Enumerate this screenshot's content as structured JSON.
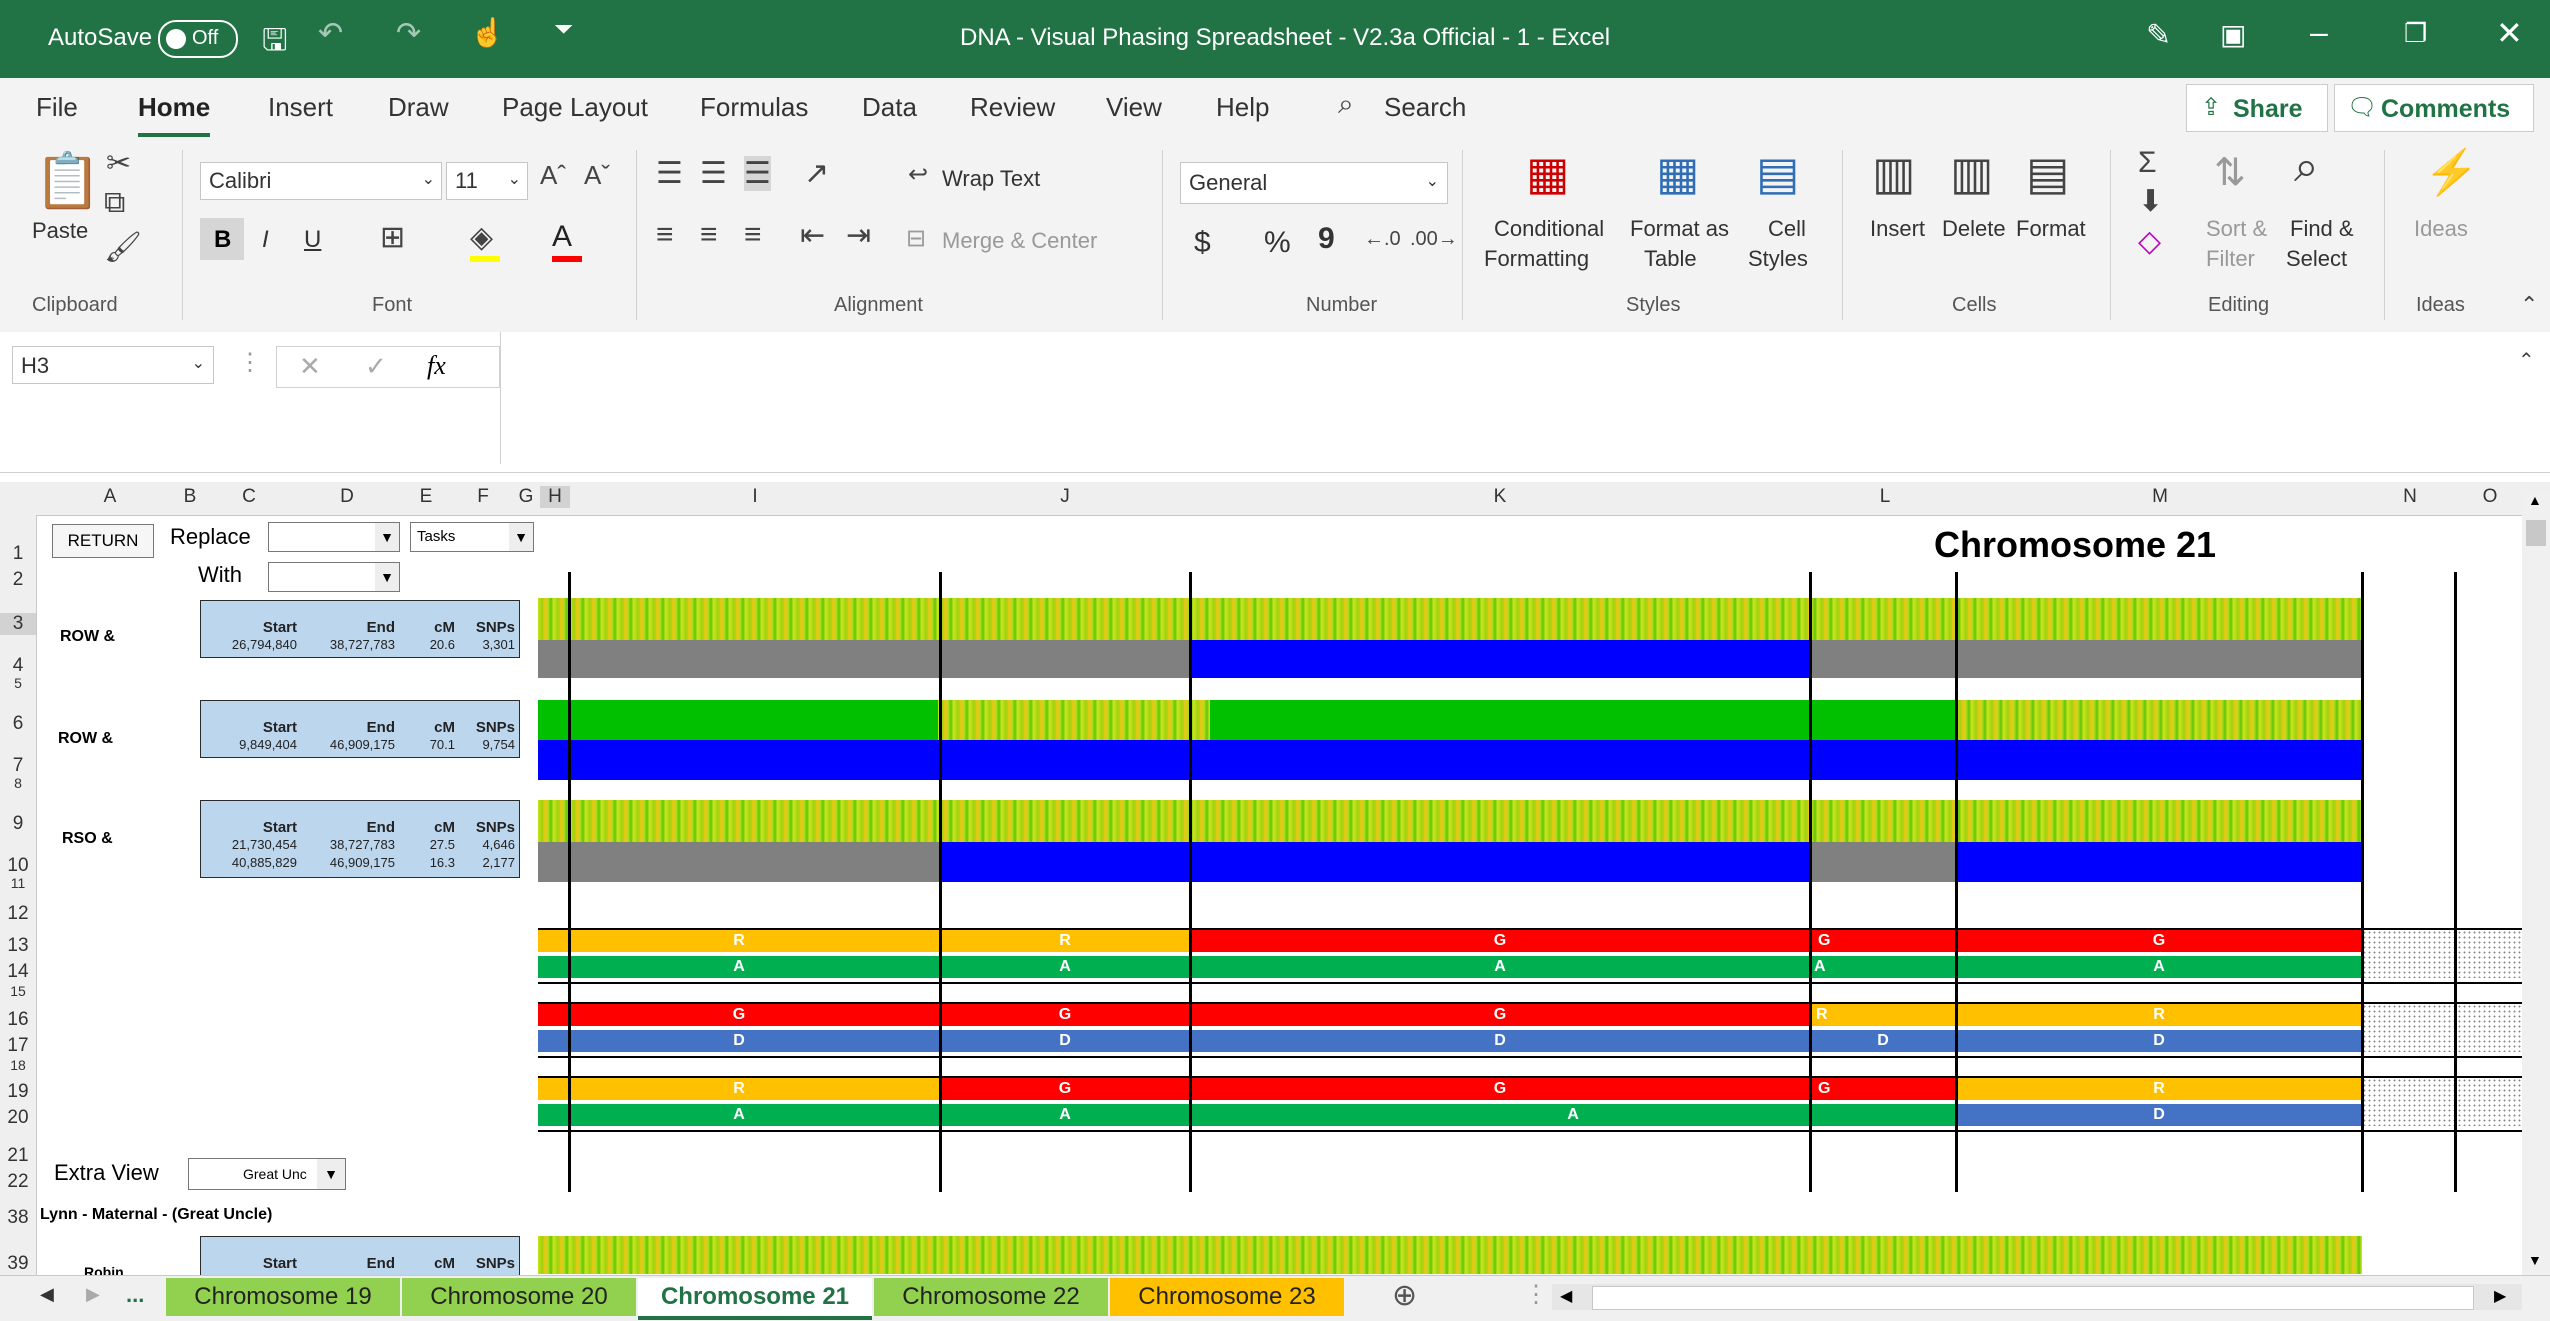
{
  "window": {
    "autosave_label": "AutoSave",
    "autosave_state": "Off",
    "title": "DNA - Visual Phasing Spreadsheet - V2.3a Official - 1  -  Excel"
  },
  "ribbon_tabs": [
    "File",
    "Home",
    "Insert",
    "Draw",
    "Page Layout",
    "Formulas",
    "Data",
    "Review",
    "View",
    "Help"
  ],
  "search_label": "Search",
  "share_label": "Share",
  "comments_label": "Comments",
  "clipboard": {
    "paste": "Paste",
    "group": "Clipboard"
  },
  "font": {
    "name": "Calibri",
    "size": "11",
    "bold": "B",
    "italic": "I",
    "underline": "U",
    "group": "Font"
  },
  "alignment": {
    "wrap": "Wrap Text",
    "merge": "Merge & Center",
    "group": "Alignment"
  },
  "number": {
    "format": "General",
    "currency": "$",
    "percent": "%",
    "comma": "9",
    "group": "Number"
  },
  "styles": {
    "cond1": "Conditional",
    "cond2": "Formatting",
    "fmt1": "Format as",
    "fmt2": "Table",
    "cell1": "Cell",
    "cell2": "Styles",
    "group": "Styles"
  },
  "cells": {
    "insert": "Insert",
    "delete": "Delete",
    "format": "Format",
    "group": "Cells"
  },
  "editing": {
    "sort1": "Sort &",
    "sort2": "Filter",
    "find1": "Find &",
    "find2": "Select",
    "group": "Editing"
  },
  "ideas": {
    "label": "Ideas",
    "group": "Ideas"
  },
  "formula_bar": {
    "name_box": "H3",
    "fx": "fx",
    "formula": ""
  },
  "columns": [
    "A",
    "B",
    "C",
    "D",
    "E",
    "F",
    "G",
    "H",
    "I",
    "J",
    "K",
    "L",
    "M",
    "N",
    "O"
  ],
  "rows": [
    "1",
    "2",
    "3",
    "4",
    "5",
    "6",
    "7",
    "8",
    "9",
    "10",
    "11",
    "12",
    "13",
    "14",
    "15",
    "16",
    "17",
    "18",
    "19",
    "20",
    "21",
    "22",
    "38",
    "39"
  ],
  "controls": {
    "return_button": "RETURN",
    "replace_label": "Replace",
    "with_label": "With",
    "tasks_value": "Tasks",
    "extra_view_label": "Extra View",
    "extra_view_value": "Great Unc"
  },
  "chart_title": "Chromosome 21",
  "blocks": [
    {
      "label": "ROW &",
      "hdr": [
        "Start",
        "End",
        "cM",
        "SNPs"
      ],
      "rows": [
        [
          "26,794,840",
          "38,727,783",
          "20.6",
          "3,301"
        ]
      ]
    },
    {
      "label": "ROW &",
      "hdr": [
        "Start",
        "End",
        "cM",
        "SNPs"
      ],
      "rows": [
        [
          "9,849,404",
          "46,909,175",
          "70.1",
          "9,754"
        ]
      ]
    },
    {
      "label": "RSO &",
      "hdr": [
        "Start",
        "End",
        "cM",
        "SNPs"
      ],
      "rows": [
        [
          "21,730,454",
          "38,727,783",
          "27.5",
          "4,646"
        ],
        [
          "40,885,829",
          "46,909,175",
          "16.3",
          "2,177"
        ]
      ]
    },
    {
      "label": "Robin",
      "hdr": [
        "Start",
        "End",
        "cM",
        "SNPs"
      ],
      "rows": []
    }
  ],
  "section_label": "Lynn - Maternal - (Great Uncle)",
  "segments": {
    "r13": [
      "R",
      "R",
      "G",
      "G",
      "G"
    ],
    "r14": [
      "A",
      "A",
      "A",
      "A",
      "A"
    ],
    "r16": [
      "G",
      "G",
      "G",
      "R",
      "R"
    ],
    "r17": [
      "D",
      "D",
      "D",
      "D",
      "D"
    ],
    "r19": [
      "R",
      "G",
      "G",
      "G",
      "R"
    ],
    "r20": [
      "A",
      "A",
      "A",
      "D"
    ]
  },
  "sheet_tabs": [
    "Chromosome 19",
    "Chromosome 20",
    "Chromosome 21",
    "Chromosome 22",
    "Chromosome 23"
  ],
  "sheet_tab_ellipsis": "...",
  "colors": {
    "excel_green": "#217346",
    "seg_yellow": "#ffc000",
    "seg_red": "#ff0000",
    "seg_green": "#00b050",
    "seg_blue": "#4472c4",
    "bar_blue": "#0000ff",
    "bar_gray": "#808080"
  }
}
